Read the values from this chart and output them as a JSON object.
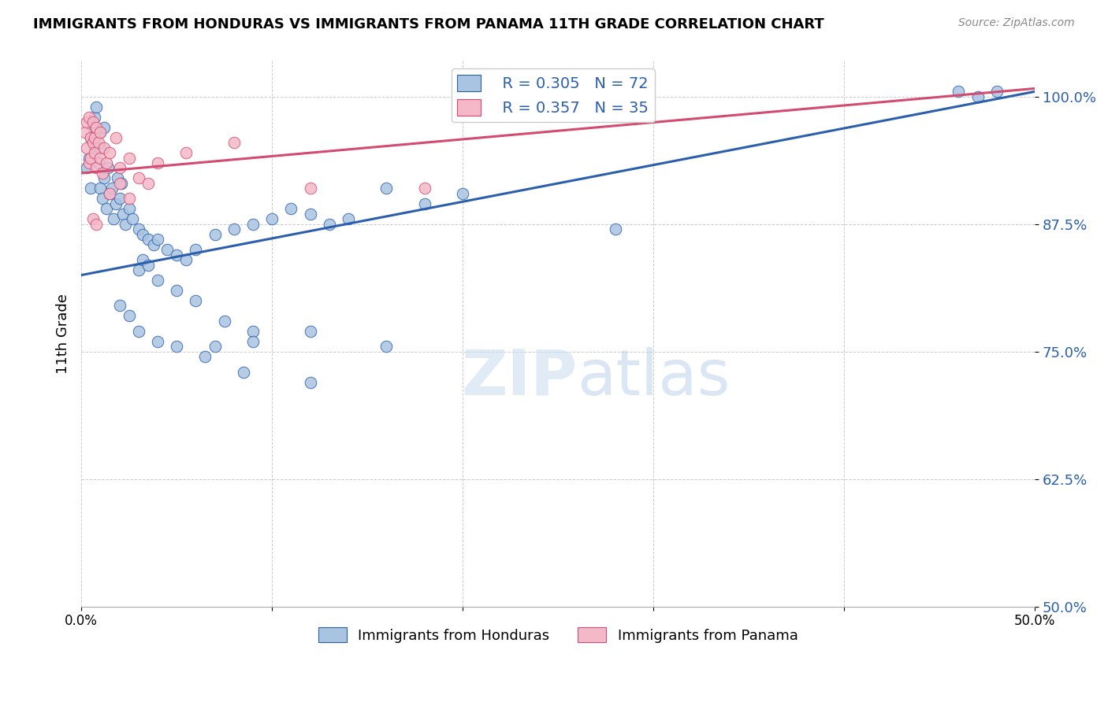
{
  "title": "IMMIGRANTS FROM HONDURAS VS IMMIGRANTS FROM PANAMA 11TH GRADE CORRELATION CHART",
  "source": "Source: ZipAtlas.com",
  "ylabel": "11th Grade",
  "yticks": [
    50.0,
    62.5,
    75.0,
    87.5,
    100.0
  ],
  "xlim": [
    0.0,
    50.0
  ],
  "ylim": [
    50.0,
    103.5
  ],
  "r_honduras": 0.305,
  "n_honduras": 72,
  "r_panama": 0.357,
  "n_panama": 35,
  "legend_label_honduras": "Immigrants from Honduras",
  "legend_label_panama": "Immigrants from Panama",
  "color_honduras": "#a8c4e0",
  "color_panama": "#f4b8c8",
  "line_color_honduras": "#2b5fad",
  "line_color_panama": "#d44b72",
  "watermark_zip": "ZIP",
  "watermark_atlas": "atlas",
  "line_honduras_x0": 0.0,
  "line_honduras_y0": 82.5,
  "line_honduras_x1": 50.0,
  "line_honduras_y1": 100.5,
  "line_panama_x0": 0.0,
  "line_panama_y0": 92.5,
  "line_panama_x1": 50.0,
  "line_panama_y1": 100.8,
  "scatter_honduras_x": [
    0.3,
    0.4,
    0.5,
    0.5,
    0.6,
    0.7,
    0.7,
    0.8,
    0.9,
    1.0,
    1.0,
    1.0,
    1.1,
    1.2,
    1.2,
    1.3,
    1.4,
    1.5,
    1.6,
    1.7,
    1.8,
    1.9,
    2.0,
    2.1,
    2.2,
    2.3,
    2.5,
    2.7,
    3.0,
    3.2,
    3.5,
    3.8,
    4.0,
    4.5,
    5.0,
    5.5,
    6.0,
    7.0,
    8.0,
    9.0,
    10.0,
    11.0,
    12.0,
    13.0,
    14.0,
    16.0,
    18.0,
    20.0,
    3.0,
    3.2,
    3.5,
    4.0,
    5.0,
    6.0,
    7.5,
    9.0,
    2.0,
    2.5,
    3.0,
    4.0,
    5.0,
    6.5,
    8.5,
    12.0,
    7.0,
    9.0,
    12.0,
    16.0,
    46.0,
    47.0,
    48.0,
    28.0
  ],
  "scatter_honduras_y": [
    93.0,
    94.0,
    96.0,
    91.0,
    97.0,
    98.0,
    95.0,
    99.0,
    93.5,
    95.0,
    91.0,
    96.5,
    90.0,
    92.0,
    97.0,
    89.0,
    93.0,
    90.5,
    91.0,
    88.0,
    89.5,
    92.0,
    90.0,
    91.5,
    88.5,
    87.5,
    89.0,
    88.0,
    87.0,
    86.5,
    86.0,
    85.5,
    86.0,
    85.0,
    84.5,
    84.0,
    85.0,
    86.5,
    87.0,
    87.5,
    88.0,
    89.0,
    88.5,
    87.5,
    88.0,
    91.0,
    89.5,
    90.5,
    83.0,
    84.0,
    83.5,
    82.0,
    81.0,
    80.0,
    78.0,
    77.0,
    79.5,
    78.5,
    77.0,
    76.0,
    75.5,
    74.5,
    73.0,
    72.0,
    75.5,
    76.0,
    77.0,
    75.5,
    100.5,
    100.0,
    100.5,
    87.0
  ],
  "scatter_panama_x": [
    0.2,
    0.3,
    0.3,
    0.4,
    0.4,
    0.5,
    0.5,
    0.6,
    0.6,
    0.7,
    0.7,
    0.8,
    0.8,
    0.9,
    1.0,
    1.0,
    1.1,
    1.2,
    1.3,
    1.5,
    1.8,
    2.0,
    2.5,
    3.0,
    4.0,
    5.5,
    8.0,
    12.0,
    1.5,
    2.0,
    2.5,
    0.6,
    0.8,
    3.5,
    18.0
  ],
  "scatter_panama_y": [
    96.5,
    97.5,
    95.0,
    98.0,
    93.5,
    96.0,
    94.0,
    97.5,
    95.5,
    96.0,
    94.5,
    93.0,
    97.0,
    95.5,
    96.5,
    94.0,
    92.5,
    95.0,
    93.5,
    94.5,
    96.0,
    93.0,
    94.0,
    92.0,
    93.5,
    94.5,
    95.5,
    91.0,
    90.5,
    91.5,
    90.0,
    88.0,
    87.5,
    91.5,
    91.0
  ]
}
